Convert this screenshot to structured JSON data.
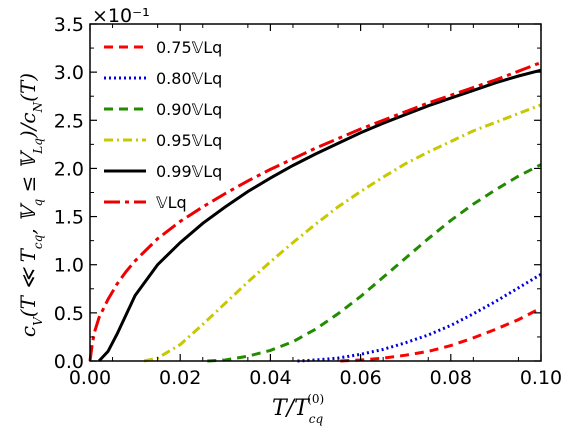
{
  "chart_data": {
    "type": "line",
    "xlabel": "T/T_cq^(0)",
    "ylabel": "c_V^(q)(T ≪ T_cq^(0), V_q ≤ V_Lq)/c_N^(q)(T)",
    "y_multiplier": "×10⁻¹",
    "xlim": [
      0.0,
      0.1
    ],
    "ylim": [
      0.0,
      3.5
    ],
    "x_ticks": [
      "0.00",
      "0.02",
      "0.04",
      "0.06",
      "0.08",
      "0.10"
    ],
    "y_ticks": [
      "0.0",
      "0.5",
      "1.0",
      "1.5",
      "2.0",
      "2.5",
      "3.0",
      "3.5"
    ],
    "grid": false,
    "legend_position": "upper-left",
    "series": [
      {
        "name": "0.75𝕍Lq",
        "color": "#ff0000",
        "style": "dashed",
        "x": [
          0.0555,
          0.06,
          0.065,
          0.07,
          0.075,
          0.08,
          0.085,
          0.09,
          0.095,
          0.1
        ],
        "y": [
          0.0,
          0.01,
          0.03,
          0.06,
          0.1,
          0.16,
          0.24,
          0.33,
          0.43,
          0.55
        ]
      },
      {
        "name": "0.80𝕍Lq",
        "color": "#0000dd",
        "style": "dotted",
        "x": [
          0.046,
          0.05,
          0.055,
          0.06,
          0.065,
          0.07,
          0.075,
          0.08,
          0.085,
          0.09,
          0.095,
          0.1
        ],
        "y": [
          0.0,
          0.01,
          0.03,
          0.07,
          0.12,
          0.19,
          0.27,
          0.37,
          0.49,
          0.62,
          0.76,
          0.9
        ]
      },
      {
        "name": "0.90𝕍Lq",
        "color": "#228b00",
        "style": "dashed",
        "x": [
          0.026,
          0.03,
          0.035,
          0.04,
          0.045,
          0.05,
          0.055,
          0.06,
          0.065,
          0.07,
          0.075,
          0.08,
          0.085,
          0.09,
          0.095,
          0.1
        ],
        "y": [
          0.0,
          0.01,
          0.05,
          0.11,
          0.2,
          0.33,
          0.49,
          0.67,
          0.87,
          1.07,
          1.27,
          1.46,
          1.63,
          1.78,
          1.92,
          2.04
        ]
      },
      {
        "name": "0.95𝕍Lq",
        "color": "#c8c800",
        "style": "dashdot",
        "x": [
          0.012,
          0.015,
          0.02,
          0.025,
          0.03,
          0.035,
          0.04,
          0.045,
          0.05,
          0.055,
          0.06,
          0.065,
          0.07,
          0.075,
          0.08,
          0.085,
          0.09,
          0.095,
          0.1
        ],
        "y": [
          0.0,
          0.03,
          0.17,
          0.38,
          0.6,
          0.82,
          1.03,
          1.23,
          1.42,
          1.6,
          1.76,
          1.91,
          2.05,
          2.17,
          2.28,
          2.39,
          2.48,
          2.57,
          2.66
        ]
      },
      {
        "name": "0.99𝕍Lq",
        "color": "#000000",
        "style": "solid",
        "x": [
          0.002,
          0.004,
          0.006,
          0.008,
          0.01,
          0.015,
          0.02,
          0.025,
          0.03,
          0.035,
          0.04,
          0.045,
          0.05,
          0.055,
          0.06,
          0.065,
          0.07,
          0.075,
          0.08,
          0.085,
          0.09,
          0.095,
          0.1
        ],
        "y": [
          0.0,
          0.1,
          0.28,
          0.48,
          0.68,
          1.0,
          1.23,
          1.43,
          1.6,
          1.76,
          1.9,
          2.03,
          2.15,
          2.26,
          2.37,
          2.47,
          2.56,
          2.65,
          2.73,
          2.81,
          2.89,
          2.96,
          3.02
        ]
      },
      {
        "name": "𝕍Lq",
        "color": "#ee0000",
        "style": "longdashdot",
        "x": [
          0.0,
          0.0005,
          0.001,
          0.002,
          0.004,
          0.006,
          0.008,
          0.01,
          0.015,
          0.02,
          0.025,
          0.03,
          0.035,
          0.04,
          0.045,
          0.05,
          0.055,
          0.06,
          0.065,
          0.07,
          0.075,
          0.08,
          0.085,
          0.09,
          0.095,
          0.1
        ],
        "y": [
          0.0,
          0.18,
          0.3,
          0.45,
          0.64,
          0.8,
          0.93,
          1.04,
          1.27,
          1.45,
          1.6,
          1.74,
          1.87,
          1.99,
          2.1,
          2.21,
          2.31,
          2.41,
          2.5,
          2.59,
          2.68,
          2.76,
          2.84,
          2.92,
          3.01,
          3.1
        ]
      }
    ]
  }
}
